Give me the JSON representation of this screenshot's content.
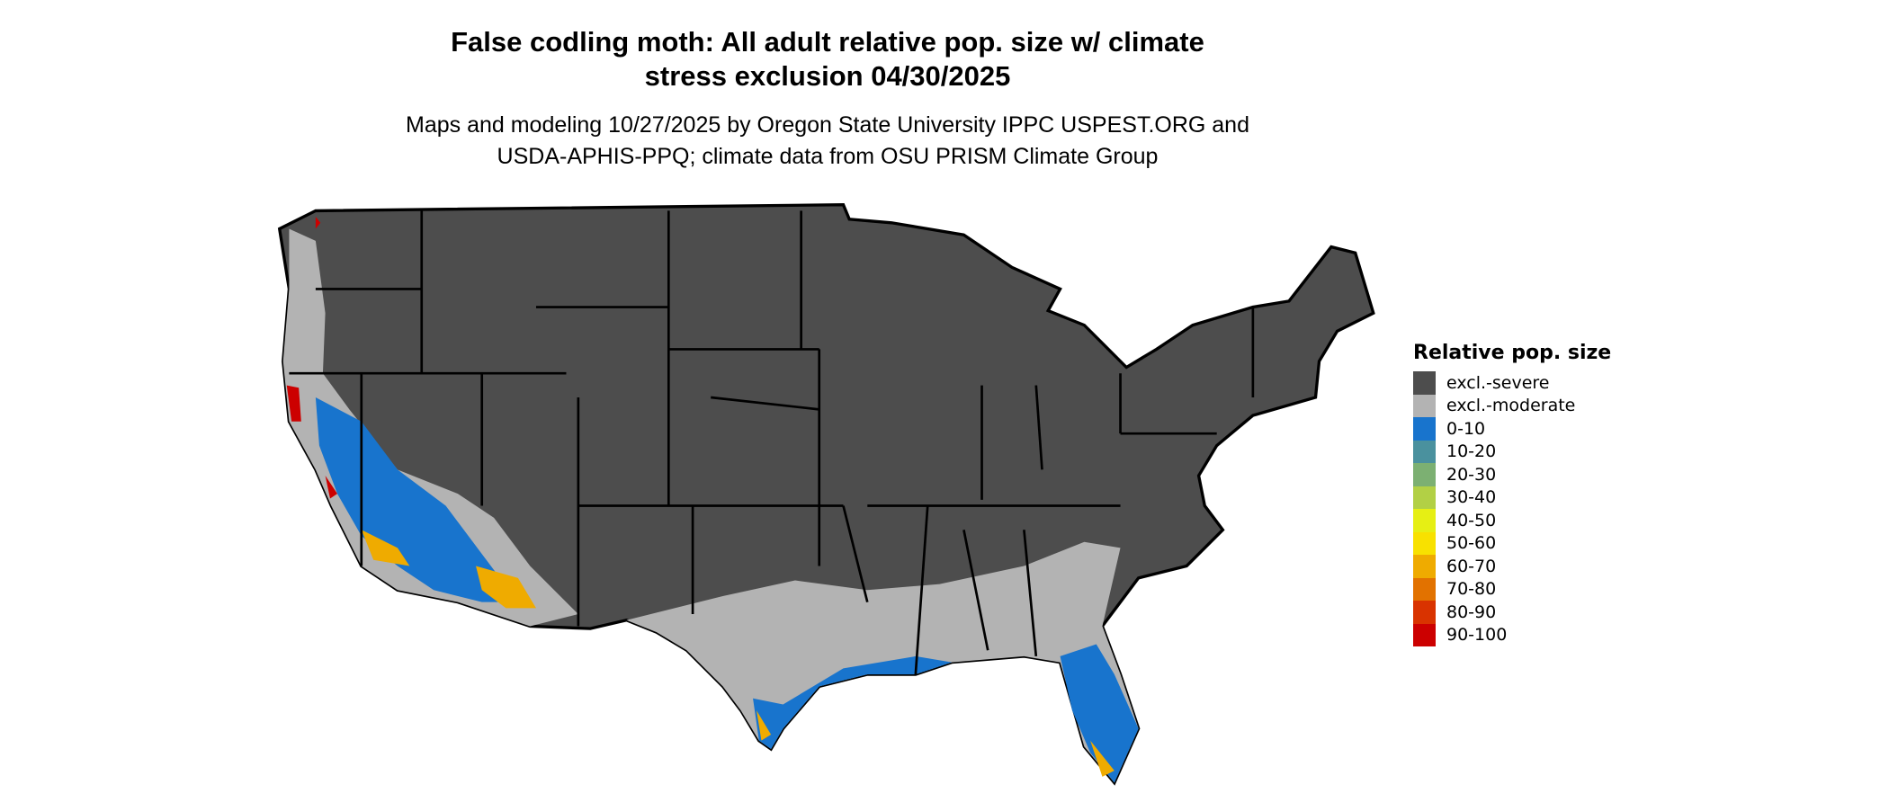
{
  "title": {
    "line1": "False codling moth: All adult relative pop. size w/ climate",
    "line2": "stress exclusion 04/30/2025"
  },
  "subtitle": {
    "line1": "Maps and modeling 10/27/2025 by Oregon State University IPPC USPEST.ORG and",
    "line2": "USDA-APHIS-PPQ; climate data from OSU PRISM Climate Group"
  },
  "legend": {
    "title": "Relative pop. size",
    "items": [
      {
        "label": "excl.-severe",
        "color": "#4d4d4d"
      },
      {
        "label": "excl.-moderate",
        "color": "#b3b3b3"
      },
      {
        "label": "0-10",
        "color": "#1874cd"
      },
      {
        "label": "10-20",
        "color": "#4a919e"
      },
      {
        "label": "20-30",
        "color": "#7cb072"
      },
      {
        "label": "30-40",
        "color": "#b2d045"
      },
      {
        "label": "40-50",
        "color": "#e6ef14"
      },
      {
        "label": "50-60",
        "color": "#f8e100"
      },
      {
        "label": "60-70",
        "color": "#efab00"
      },
      {
        "label": "70-80",
        "color": "#e27200"
      },
      {
        "label": "80-90",
        "color": "#d93300"
      },
      {
        "label": "90-100",
        "color": "#cc0000"
      }
    ]
  }
}
